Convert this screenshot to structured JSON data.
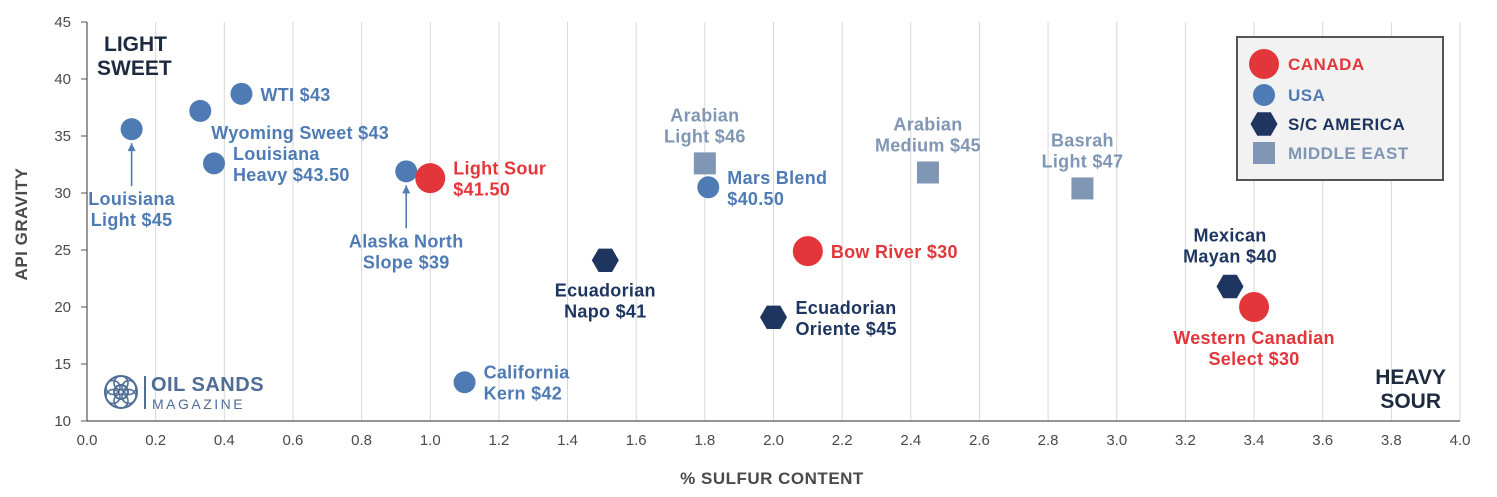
{
  "colors": {
    "canada": "#e3363a",
    "usa": "#4f7bb5",
    "sc_america": "#1e3560",
    "middle_east": "#7f96b4",
    "grid": "#d7d7d7",
    "axis_text": "#4a4a4a"
  },
  "corner_labels": {
    "top_left": [
      "LIGHT",
      "SWEET"
    ],
    "bottom_right": [
      "HEAVY",
      "SOUR"
    ]
  },
  "logo": {
    "line1": "OIL SANDS",
    "line2": "MAGAZINE"
  },
  "chart_data": {
    "type": "scatter",
    "xlabel": "% SULFUR CONTENT",
    "ylabel": "API GRAVITY",
    "xlim": [
      0.0,
      4.0
    ],
    "ylim": [
      10,
      45
    ],
    "xticks": [
      "0.0",
      "0.2",
      "0.4",
      "0.6",
      "0.8",
      "1.0",
      "1.2",
      "1.4",
      "1.6",
      "1.8",
      "2.0",
      "2.2",
      "2.4",
      "2.6",
      "2.8",
      "3.0",
      "3.2",
      "3.4",
      "3.6",
      "3.8",
      "4.0"
    ],
    "yticks": [
      "10",
      "15",
      "20",
      "25",
      "30",
      "35",
      "40",
      "45"
    ],
    "grid": "vertical",
    "legend_position": "top-right",
    "series": [
      {
        "name": "CANADA",
        "key": "canada",
        "marker": "circle-large"
      },
      {
        "name": "USA",
        "key": "usa",
        "marker": "circle"
      },
      {
        "name": "S/C AMERICA",
        "key": "sc_america",
        "marker": "hexagon"
      },
      {
        "name": "MIDDLE EAST",
        "key": "middle_east",
        "marker": "square"
      }
    ],
    "points": [
      {
        "series": "usa",
        "x": 0.45,
        "y": 38.7,
        "label": [
          "WTI $43"
        ],
        "anchor": "right"
      },
      {
        "series": "usa",
        "x": 0.33,
        "y": 37.2,
        "label": [
          "Wyoming Sweet $43"
        ],
        "anchor": "below-right"
      },
      {
        "series": "usa",
        "x": 0.13,
        "y": 35.6,
        "label": [
          "Louisiana",
          "Light $45"
        ],
        "anchor": "arrow-below"
      },
      {
        "series": "usa",
        "x": 0.37,
        "y": 32.6,
        "label": [
          "Louisiana",
          "Heavy $43.50"
        ],
        "anchor": "right"
      },
      {
        "series": "usa",
        "x": 0.93,
        "y": 31.9,
        "label": [
          "Alaska North",
          "Slope $39"
        ],
        "anchor": "arrow-below"
      },
      {
        "series": "canada",
        "x": 1.0,
        "y": 31.3,
        "label": [
          "Light Sour",
          "$41.50"
        ],
        "anchor": "right"
      },
      {
        "series": "usa",
        "x": 1.1,
        "y": 13.4,
        "label": [
          "California",
          "Kern $42"
        ],
        "anchor": "right"
      },
      {
        "series": "sc_america",
        "x": 1.51,
        "y": 24.1,
        "label": [
          "Ecuadorian",
          "Napo $41"
        ],
        "anchor": "below"
      },
      {
        "series": "middle_east",
        "x": 1.8,
        "y": 32.6,
        "label": [
          "Arabian",
          "Light $46"
        ],
        "anchor": "above"
      },
      {
        "series": "usa",
        "x": 1.81,
        "y": 30.5,
        "label": [
          "Mars Blend",
          "$40.50"
        ],
        "anchor": "right"
      },
      {
        "series": "sc_america",
        "x": 2.0,
        "y": 19.1,
        "label": [
          "Ecuadorian",
          "Oriente $45"
        ],
        "anchor": "right"
      },
      {
        "series": "canada",
        "x": 2.1,
        "y": 24.9,
        "label": [
          "Bow River $30"
        ],
        "anchor": "right"
      },
      {
        "series": "middle_east",
        "x": 2.45,
        "y": 31.8,
        "label": [
          "Arabian",
          "Medium $45"
        ],
        "anchor": "above"
      },
      {
        "series": "middle_east",
        "x": 2.9,
        "y": 30.4,
        "label": [
          "Basrah",
          "Light $47"
        ],
        "anchor": "above"
      },
      {
        "series": "sc_america",
        "x": 3.33,
        "y": 21.8,
        "label": [
          "Mexican",
          "Mayan $40"
        ],
        "anchor": "above"
      },
      {
        "series": "canada",
        "x": 3.4,
        "y": 20.0,
        "label": [
          "Western Canadian",
          "Select $30"
        ],
        "anchor": "below"
      }
    ]
  }
}
